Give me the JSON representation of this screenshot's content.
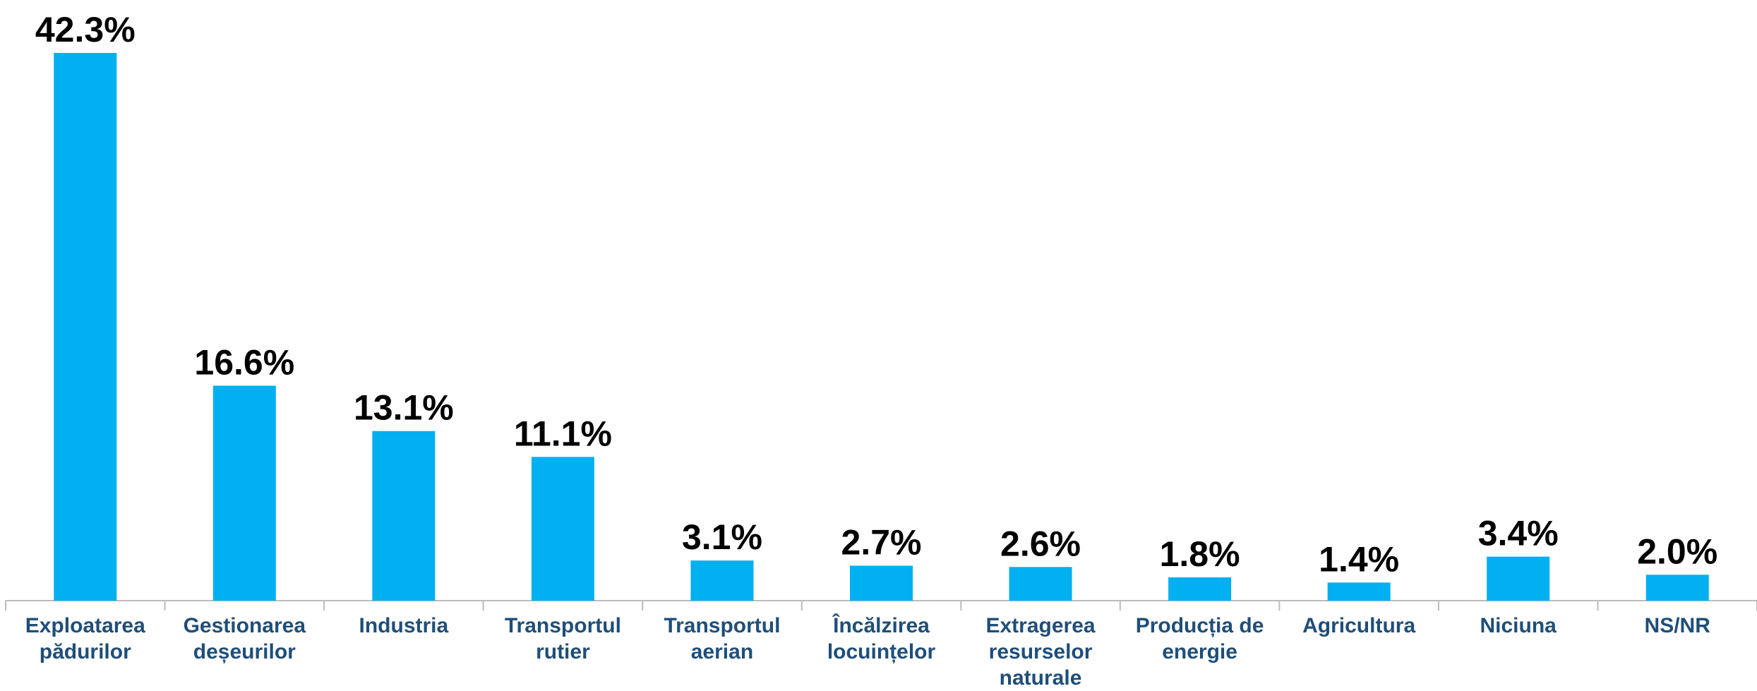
{
  "chart_data": {
    "type": "bar",
    "categories": [
      "Exploatarea\npădurilor",
      "Gestionarea\ndeșeurilor",
      "Industria",
      "Transportul\nrutier",
      "Transportul\naerian",
      "Încălzirea\nlocuințelor",
      "Extragerea\nresurselor\nnaturale",
      "Producția de\nenergie",
      "Agricultura",
      "Niciuna",
      "NS/NR"
    ],
    "values": [
      42.3,
      16.6,
      13.1,
      11.1,
      3.1,
      2.7,
      2.6,
      1.8,
      1.4,
      3.4,
      2.0
    ],
    "value_labels": [
      "42.3%",
      "16.6%",
      "13.1%",
      "11.1%",
      "3.1%",
      "2.7%",
      "2.6%",
      "1.8%",
      "1.4%",
      "3.4%",
      "2.0%"
    ],
    "color": "#00b0f0"
  }
}
